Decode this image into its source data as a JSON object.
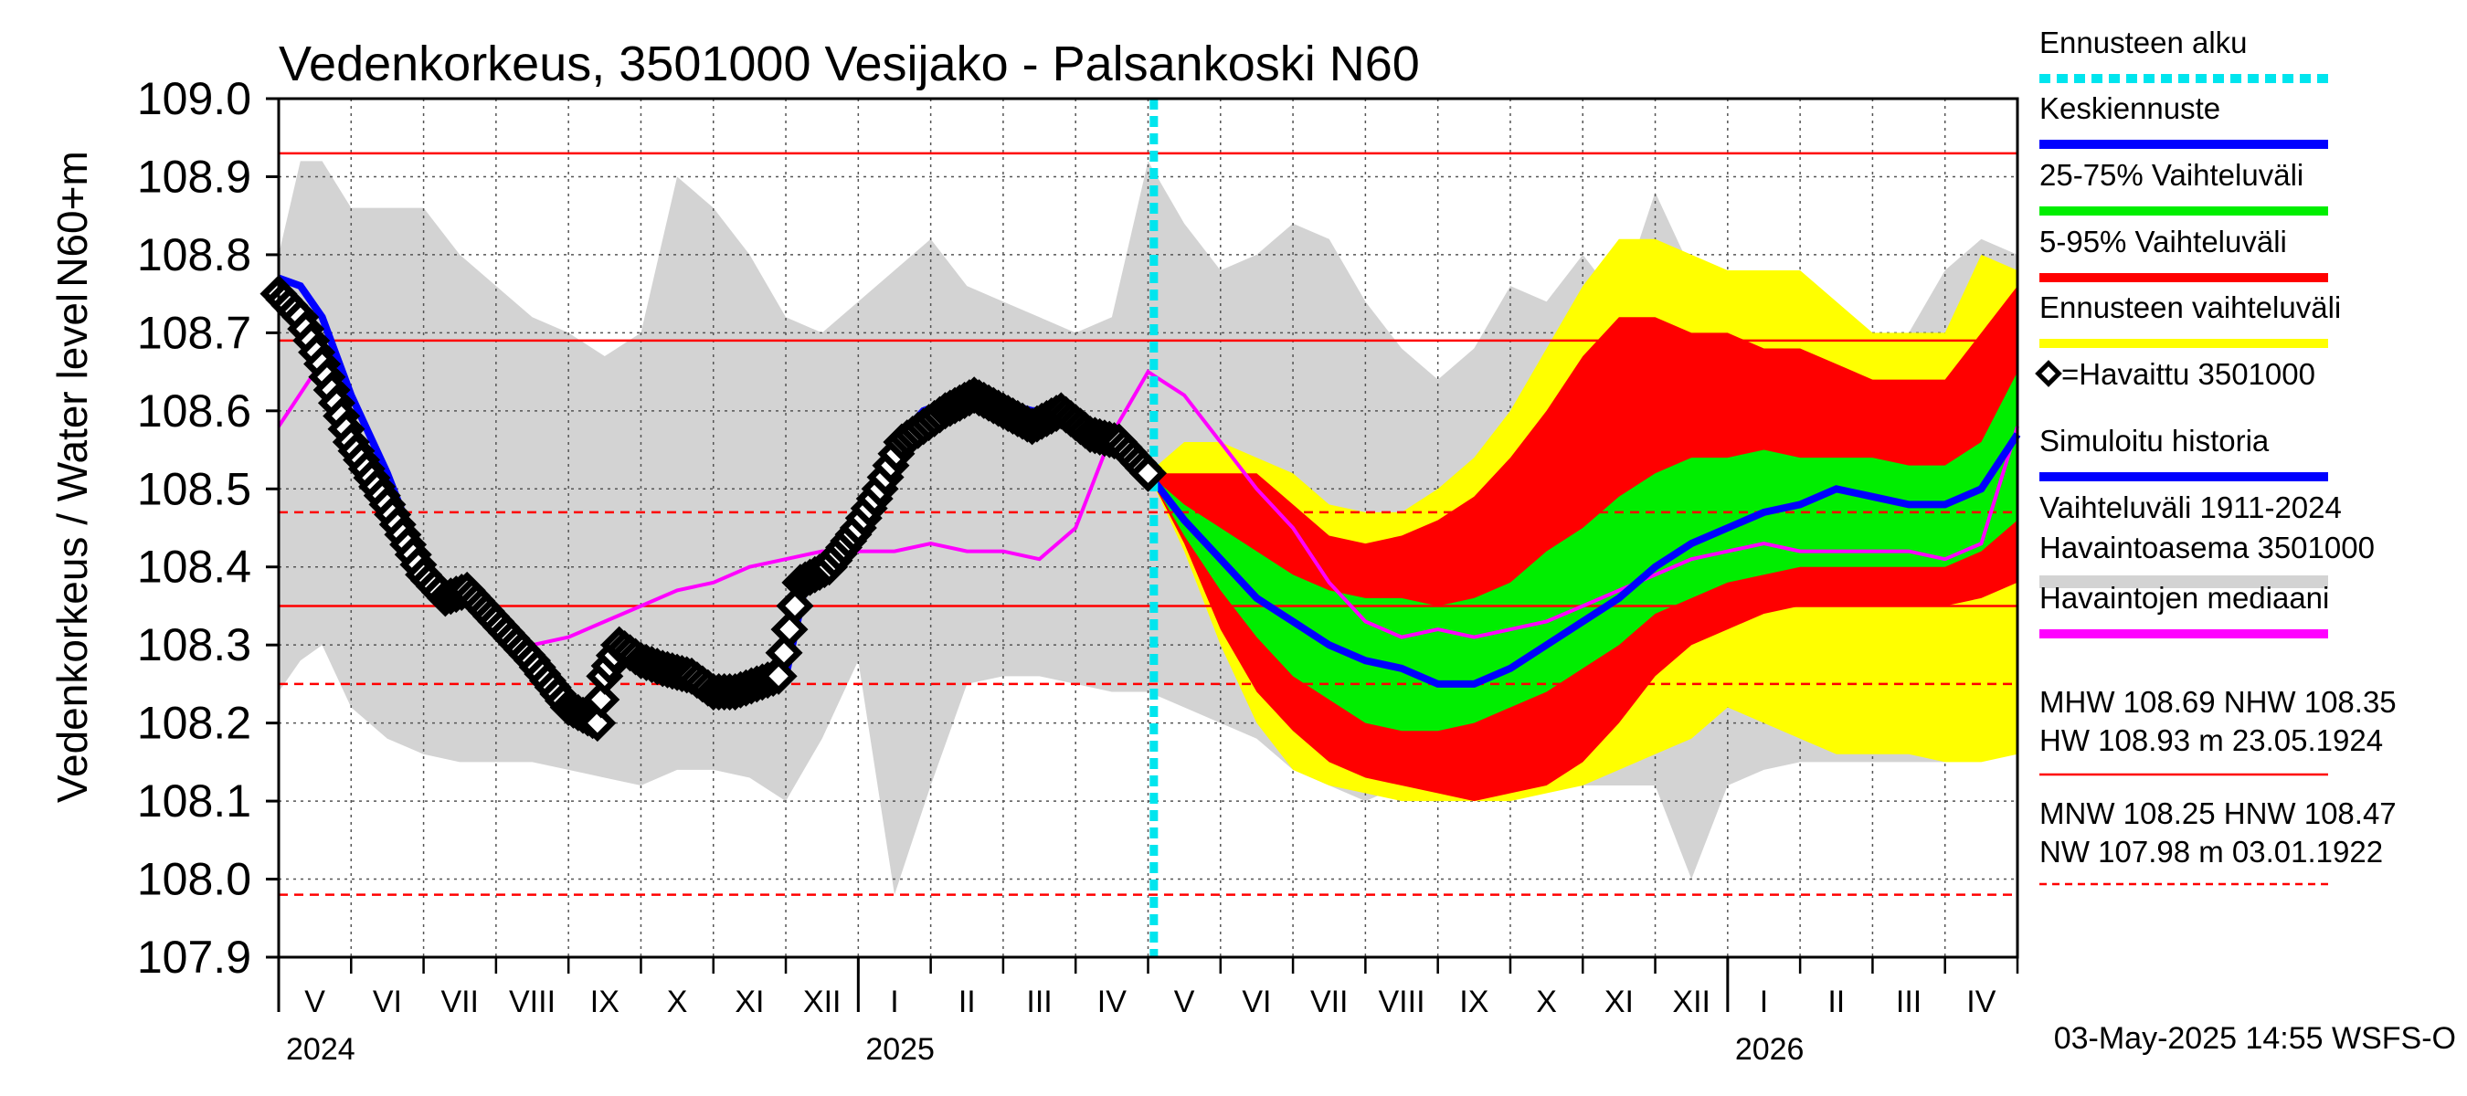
{
  "chart_data": {
    "type": "area",
    "title": "Vedenkorkeus, 3501000 Vesijako - Palsankoski N60",
    "ylabel_outer": "Vedenkorkeus / Water level",
    "ylabel_inner": "N60+m",
    "ylim": [
      107.9,
      109.0
    ],
    "yticks": [
      107.9,
      108.0,
      108.1,
      108.2,
      108.3,
      108.4,
      108.5,
      108.6,
      108.7,
      108.8,
      108.9,
      109.0
    ],
    "ytick_labels": [
      "107.9",
      "108.0",
      "108.1",
      "108.2",
      "108.3",
      "108.4",
      "108.5",
      "108.6",
      "108.7",
      "108.8",
      "108.9",
      "109.0"
    ],
    "x_range_months": [
      0,
      24
    ],
    "month_labels": [
      "V",
      "VI",
      "VII",
      "VIII",
      "IX",
      "X",
      "XI",
      "XII",
      "I",
      "II",
      "III",
      "IV",
      "V",
      "VI",
      "VII",
      "VIII",
      "IX",
      "X",
      "XI",
      "XII",
      "I",
      "II",
      "III",
      "IV"
    ],
    "year_labels": [
      {
        "label": "2024",
        "month_index": 0
      },
      {
        "label": "2025",
        "month_index": 8
      },
      {
        "label": "2026",
        "month_index": 20
      }
    ],
    "forecast_start_month": 12.08,
    "reference_lines": [
      {
        "name": "HW",
        "value": 108.93,
        "style": "solid"
      },
      {
        "name": "MHW",
        "value": 108.69,
        "style": "solid"
      },
      {
        "name": "HNW",
        "value": 108.47,
        "style": "dashed"
      },
      {
        "name": "NHW",
        "value": 108.35,
        "style": "solid"
      },
      {
        "name": "MNW",
        "value": 108.25,
        "style": "dashed"
      },
      {
        "name": "NW",
        "value": 107.98,
        "style": "dashed"
      }
    ],
    "history_range": {
      "x": [
        0,
        0.3,
        0.6,
        1.0,
        1.5,
        2.0,
        2.5,
        3.0,
        3.5,
        4.0,
        4.5,
        5.0,
        5.5,
        6.0,
        6.5,
        7.0,
        7.5,
        8.0,
        8.5,
        9.0,
        9.5,
        10.0,
        10.5,
        11.0,
        11.5,
        12.0,
        12.5,
        13.0,
        13.5,
        14.0,
        14.5,
        15.0,
        15.5,
        16.0,
        16.5,
        17.0,
        17.5,
        18.0,
        18.5,
        19.0,
        19.5,
        20.0,
        20.5,
        21.0,
        21.5,
        22.0,
        22.5,
        23.0,
        23.5,
        24.0
      ],
      "upper": [
        108.8,
        108.92,
        108.92,
        108.86,
        108.86,
        108.86,
        108.8,
        108.76,
        108.72,
        108.7,
        108.67,
        108.7,
        108.9,
        108.86,
        108.8,
        108.72,
        108.7,
        108.74,
        108.78,
        108.82,
        108.76,
        108.74,
        108.72,
        108.7,
        108.72,
        108.92,
        108.84,
        108.78,
        108.8,
        108.84,
        108.82,
        108.74,
        108.68,
        108.64,
        108.68,
        108.76,
        108.74,
        108.8,
        108.74,
        108.88,
        108.78,
        108.74,
        108.72,
        108.7,
        108.68,
        108.64,
        108.7,
        108.78,
        108.82,
        108.8
      ],
      "lower": [
        108.24,
        108.28,
        108.3,
        108.22,
        108.18,
        108.16,
        108.15,
        108.15,
        108.15,
        108.14,
        108.13,
        108.12,
        108.14,
        108.14,
        108.13,
        108.1,
        108.18,
        108.28,
        107.98,
        108.12,
        108.25,
        108.26,
        108.26,
        108.25,
        108.24,
        108.24,
        108.22,
        108.2,
        108.18,
        108.14,
        108.12,
        108.1,
        108.12,
        108.15,
        108.12,
        108.1,
        108.12,
        108.12,
        108.12,
        108.12,
        108.0,
        108.12,
        108.14,
        108.15,
        108.15,
        108.15,
        108.15,
        108.15,
        108.2,
        108.25
      ]
    },
    "median": {
      "x": [
        0,
        0.5,
        1.0,
        1.5,
        2.0,
        2.5,
        3.0,
        3.5,
        4.0,
        4.5,
        5.0,
        5.5,
        6.0,
        6.5,
        7.0,
        7.5,
        8.0,
        8.5,
        9.0,
        9.5,
        10.0,
        10.5,
        11.0,
        11.5,
        12.0,
        12.5,
        13.0,
        13.5,
        14.0,
        14.5,
        15.0,
        15.5,
        16.0,
        16.5,
        17.0,
        17.5,
        18.0,
        18.5,
        19.0,
        19.5,
        20.0,
        20.5,
        21.0,
        21.5,
        22.0,
        22.5,
        23.0,
        23.5,
        24.0
      ],
      "y": [
        108.58,
        108.65,
        108.59,
        108.48,
        108.4,
        108.36,
        108.31,
        108.3,
        108.31,
        108.33,
        108.35,
        108.37,
        108.38,
        108.4,
        108.41,
        108.42,
        108.42,
        108.42,
        108.43,
        108.42,
        108.42,
        108.41,
        108.45,
        108.57,
        108.65,
        108.62,
        108.56,
        108.5,
        108.45,
        108.38,
        108.33,
        108.31,
        108.32,
        108.31,
        108.32,
        108.33,
        108.35,
        108.37,
        108.39,
        108.41,
        108.42,
        108.43,
        108.42,
        108.42,
        108.42,
        108.42,
        108.41,
        108.43,
        108.58
      ]
    },
    "observed": {
      "x": [
        0,
        0.3,
        0.6,
        1.0,
        1.5,
        2.0,
        2.3,
        2.6,
        3.0,
        3.5,
        4.0,
        4.4,
        4.5,
        4.7,
        5.0,
        5.3,
        5.7,
        6.0,
        6.3,
        6.6,
        6.9,
        7.2,
        7.6,
        8.0,
        8.3,
        8.6,
        8.9,
        9.2,
        9.6,
        10.0,
        10.4,
        10.8,
        11.2,
        11.6,
        12.0
      ],
      "y": [
        108.75,
        108.72,
        108.66,
        108.56,
        108.48,
        108.39,
        108.36,
        108.37,
        108.33,
        108.28,
        108.22,
        108.2,
        108.26,
        108.3,
        108.28,
        108.27,
        108.26,
        108.24,
        108.24,
        108.25,
        108.26,
        108.38,
        108.4,
        108.45,
        108.5,
        108.56,
        108.58,
        108.6,
        108.62,
        108.6,
        108.58,
        108.6,
        108.57,
        108.56,
        108.52
      ]
    },
    "simulated": {
      "x": [
        0,
        0.3,
        0.6,
        1.0,
        1.5,
        2.0,
        2.5,
        3.0,
        3.5,
        4.0,
        4.4,
        4.5,
        4.7,
        5.0,
        5.5,
        6.0,
        6.5,
        7.0,
        7.3,
        7.6,
        8.0,
        8.3,
        8.6,
        8.9,
        9.2,
        9.6,
        10.0,
        10.4,
        10.8,
        11.2,
        11.6,
        12.0
      ],
      "y": [
        108.77,
        108.76,
        108.72,
        108.62,
        108.52,
        108.4,
        108.36,
        108.33,
        108.28,
        108.23,
        108.21,
        108.28,
        108.3,
        108.28,
        108.26,
        108.24,
        108.24,
        108.26,
        108.39,
        108.41,
        108.45,
        108.52,
        108.57,
        108.6,
        108.61,
        108.62,
        108.61,
        108.6,
        108.6,
        108.58,
        108.57,
        108.52
      ]
    },
    "forecast": {
      "x": [
        12.0,
        12.5,
        13.0,
        13.5,
        14.0,
        14.5,
        15.0,
        15.5,
        16.0,
        16.5,
        17.0,
        17.5,
        18.0,
        18.5,
        19.0,
        19.5,
        20.0,
        20.5,
        21.0,
        21.5,
        22.0,
        22.5,
        23.0,
        23.5,
        24.0
      ],
      "mean": [
        108.52,
        108.46,
        108.41,
        108.36,
        108.33,
        108.3,
        108.28,
        108.27,
        108.25,
        108.25,
        108.27,
        108.3,
        108.33,
        108.36,
        108.4,
        108.43,
        108.45,
        108.47,
        108.48,
        108.5,
        108.49,
        108.48,
        108.48,
        108.5,
        108.57
      ],
      "p25": [
        108.52,
        108.44,
        108.37,
        108.31,
        108.26,
        108.23,
        108.2,
        108.19,
        108.19,
        108.2,
        108.22,
        108.24,
        108.27,
        108.3,
        108.34,
        108.36,
        108.38,
        108.39,
        108.4,
        108.4,
        108.4,
        108.4,
        108.4,
        108.42,
        108.46
      ],
      "p75": [
        108.52,
        108.48,
        108.45,
        108.42,
        108.39,
        108.37,
        108.36,
        108.36,
        108.35,
        108.36,
        108.38,
        108.42,
        108.45,
        108.49,
        108.52,
        108.54,
        108.54,
        108.55,
        108.54,
        108.54,
        108.54,
        108.53,
        108.53,
        108.56,
        108.65
      ],
      "p05": [
        108.52,
        108.43,
        108.32,
        108.24,
        108.19,
        108.15,
        108.13,
        108.12,
        108.11,
        108.1,
        108.11,
        108.12,
        108.15,
        108.2,
        108.26,
        108.3,
        108.32,
        108.34,
        108.35,
        108.35,
        108.35,
        108.35,
        108.35,
        108.36,
        108.38
      ],
      "p95": [
        108.52,
        108.52,
        108.52,
        108.52,
        108.48,
        108.44,
        108.43,
        108.44,
        108.46,
        108.49,
        108.54,
        108.6,
        108.67,
        108.72,
        108.72,
        108.7,
        108.7,
        108.68,
        108.68,
        108.66,
        108.64,
        108.64,
        108.64,
        108.7,
        108.76
      ],
      "ens_min": [
        108.52,
        108.42,
        108.3,
        108.2,
        108.14,
        108.12,
        108.11,
        108.1,
        108.1,
        108.1,
        108.1,
        108.11,
        108.12,
        108.14,
        108.16,
        108.18,
        108.22,
        108.2,
        108.18,
        108.16,
        108.16,
        108.16,
        108.15,
        108.15,
        108.16
      ],
      "ens_max": [
        108.52,
        108.56,
        108.56,
        108.54,
        108.52,
        108.48,
        108.47,
        108.47,
        108.5,
        108.54,
        108.6,
        108.68,
        108.76,
        108.82,
        108.82,
        108.8,
        108.78,
        108.78,
        108.78,
        108.74,
        108.7,
        108.7,
        108.7,
        108.8,
        108.78
      ]
    },
    "legend": [
      {
        "label": "Ennusteen alku",
        "color": "#00e5ee",
        "style": "dashed"
      },
      {
        "label": "Keskiennuste",
        "color": "#0000ff",
        "style": "solid"
      },
      {
        "label": "25-75% Vaihteluväli",
        "color": "#00ee00",
        "style": "solid"
      },
      {
        "label": "5-95% Vaihteluväli",
        "color": "#ff0000",
        "style": "solid"
      },
      {
        "label": "Ennusteen vaihteluväli",
        "color": "#ffff00",
        "style": "solid"
      },
      {
        "label": "=Havaittu 3501000",
        "color": "#000000",
        "style": "marker"
      },
      {
        "label": "Simuloitu historia",
        "color": "#0000ff",
        "style": "solid"
      },
      {
        "label": "Vaihteluväli 1911-2024",
        "label2": " Havaintoasema 3501000",
        "color": "#d3d3d3",
        "style": "thick"
      },
      {
        "label": "Havaintojen mediaani",
        "color": "#ff00ff",
        "style": "solid"
      }
    ],
    "stats_text": [
      {
        "line1": "MHW 108.69 NHW 108.35",
        "line2": "HW 108.93 m 23.05.1924",
        "style": "solid"
      },
      {
        "line1": "MNW 108.25 HNW 108.47",
        "line2": "NW 107.98 m 03.01.1922",
        "style": "dashed"
      }
    ],
    "footer": "03-May-2025 14:55 WSFS-O",
    "colors": {
      "history": "#d3d3d3",
      "ens": "#ffff00",
      "p595": "#ff0000",
      "p2575": "#00ee00",
      "mean": "#0000ff",
      "median": "#ff00ff",
      "observed": "#000000",
      "forecast_start": "#00e5ee",
      "refline": "#ff0000"
    }
  }
}
